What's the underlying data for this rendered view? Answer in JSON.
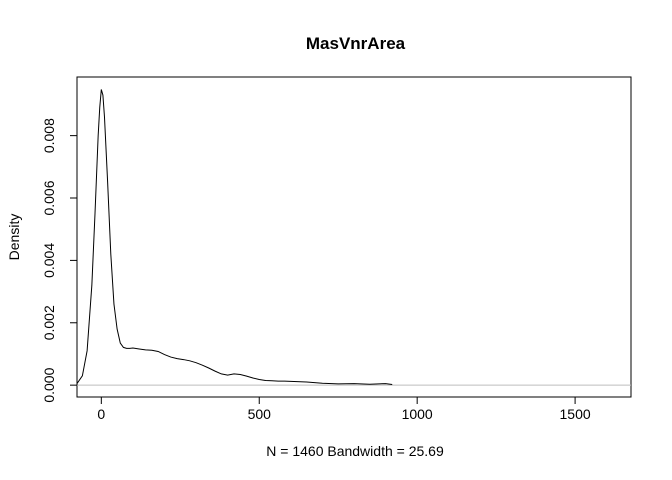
{
  "chart_data": {
    "type": "line",
    "title": "MasVnrArea",
    "xlabel": "N = 1460   Bandwidth = 25.69",
    "ylabel": "Density",
    "xlim": [
      -77,
      1677
    ],
    "ylim": [
      -0.00038,
      0.00988
    ],
    "x_ticks": [
      0,
      500,
      1000,
      1500
    ],
    "x_tick_labels": [
      "0",
      "500",
      "1000",
      "1500"
    ],
    "y_ticks": [
      0.0,
      0.002,
      0.004,
      0.006,
      0.008
    ],
    "y_tick_labels": [
      "0.000",
      "0.002",
      "0.004",
      "0.006",
      "0.008"
    ],
    "baseline": 0,
    "baseline_color": "#bebebe",
    "line_color": "#000000",
    "grid": false,
    "series": [
      {
        "x": [
          -77,
          -60,
          -45,
          -30,
          -20,
          -10,
          -5,
          0,
          5,
          10,
          20,
          30,
          40,
          50,
          60,
          70,
          80,
          90,
          100,
          120,
          140,
          160,
          180,
          200,
          220,
          240,
          260,
          280,
          300,
          320,
          340,
          360,
          380,
          400,
          420,
          440,
          460,
          480,
          500,
          520,
          540,
          560,
          580,
          600,
          650,
          700,
          750,
          800,
          850,
          900,
          921
        ],
        "y": [
          5e-05,
          0.0003,
          0.0011,
          0.0032,
          0.0055,
          0.008,
          0.0089,
          0.00948,
          0.0093,
          0.0086,
          0.0065,
          0.0042,
          0.0026,
          0.0018,
          0.00135,
          0.00121,
          0.00118,
          0.00118,
          0.00119,
          0.00116,
          0.00113,
          0.00112,
          0.00108,
          0.00098,
          0.0009,
          0.00085,
          0.00082,
          0.00078,
          0.00072,
          0.00064,
          0.00055,
          0.00045,
          0.00036,
          0.00032,
          0.00036,
          0.00034,
          0.00029,
          0.00023,
          0.00018,
          0.00015,
          0.00014,
          0.00013,
          0.00013,
          0.00012,
          0.0001,
          6e-05,
          4e-05,
          5e-05,
          3e-05,
          5e-05,
          2e-05
        ]
      }
    ]
  }
}
